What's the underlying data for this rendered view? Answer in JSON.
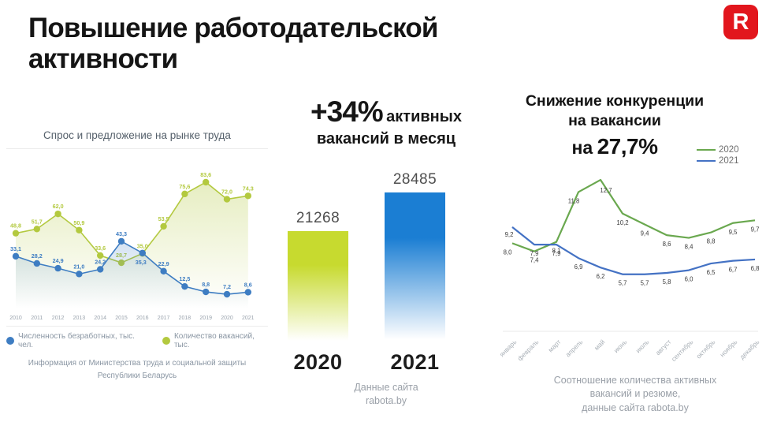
{
  "logo": {
    "letter": "R",
    "bg_color": "#e2161d"
  },
  "title": {
    "line1": "Повышение работодательской",
    "line2": "активности"
  },
  "left_panel": {
    "chart_title": "Спрос и предложение на рынке труда",
    "source": "Информация от Министерства труда и социальной защиты\nРеспублики Беларусь"
  },
  "middle_panel": {
    "stat_value": "+34%",
    "stat_text_line1": "активных",
    "stat_text_line2": "вакансий в месяц",
    "source": "Данные сайта\nrabota.by"
  },
  "right_panel": {
    "title_line1": "Снижение конкуренции",
    "title_line2": "на вакансии",
    "title_prefix": "на",
    "title_value": "27,7%",
    "source": "Соотношение количества активных\nвакансий и резюме,\nданные сайта rabota.by"
  },
  "chart_data": [
    {
      "type": "line",
      "title": "Спрос и предложение на рынке труда",
      "categories": [
        "2010",
        "2011",
        "2012",
        "2013",
        "2014",
        "2015",
        "2016",
        "2017",
        "2018",
        "2019",
        "2020",
        "2021"
      ],
      "series": [
        {
          "name": "Численность безработных, тыс. чел.",
          "color": "#3e7dc2",
          "values": [
            33.1,
            28.2,
            24.9,
            21.0,
            24.2,
            43.3,
            35.3,
            22.9,
            12.5,
            8.8,
            7.2,
            8.6
          ]
        },
        {
          "name": "Количество вакансий, тыс.",
          "color": "#b3c93f",
          "values": [
            48.8,
            51.7,
            62.0,
            50.9,
            33.6,
            28.7,
            35.0,
            53.5,
            75.6,
            83.6,
            72.0,
            74.3
          ]
        }
      ],
      "legend_position": "bottom",
      "grid": false,
      "source": "Информация от Министерства труда и социальной защиты Республики Беларусь"
    },
    {
      "type": "bar",
      "title": "+34% активных вакансий в месяц",
      "categories": [
        "2020",
        "2021"
      ],
      "values": [
        21268,
        28485
      ],
      "colors": [
        "#c7da2f",
        "#1b7ed3"
      ],
      "source": "Данные сайта rabota.by"
    },
    {
      "type": "line",
      "title": "Снижение конкуренции на вакансии на 27,7%",
      "categories": [
        "январь",
        "февраль",
        "март",
        "апрель",
        "май",
        "июнь",
        "июль",
        "август",
        "сентябрь",
        "октябрь",
        "ноябрь",
        "декабрь"
      ],
      "series": [
        {
          "name": "2020",
          "color": "#6aa84f",
          "values": [
            8.0,
            7.4,
            8.1,
            11.8,
            12.7,
            10.2,
            9.4,
            8.6,
            8.4,
            8.8,
            9.5,
            9.7
          ]
        },
        {
          "name": "2021",
          "color": "#4472c4",
          "values": [
            9.2,
            7.9,
            7.9,
            6.9,
            6.2,
            5.7,
            5.7,
            5.8,
            6.0,
            6.5,
            6.7,
            6.8
          ]
        }
      ],
      "legend_position": "top-right",
      "grid": false,
      "source": "Соотношение количества активных вакансий и резюме, данные сайта rabota.by"
    }
  ]
}
